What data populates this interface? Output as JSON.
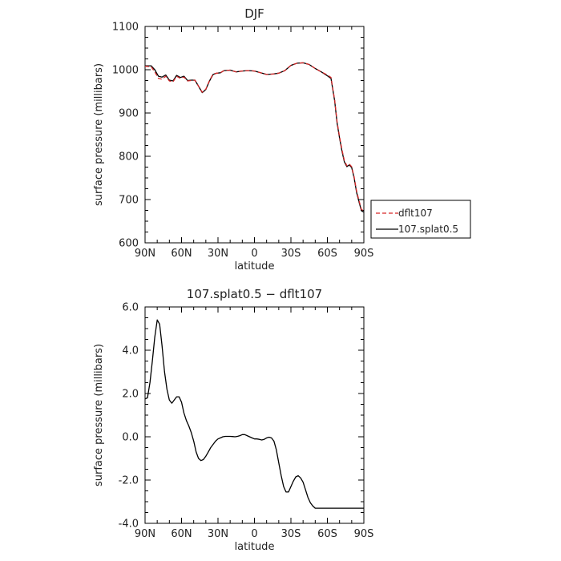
{
  "chart_data": [
    {
      "type": "line",
      "title": "DJF",
      "xlabel": "latitude",
      "ylabel": "surface pressure (millibars)",
      "xlim": [
        90,
        -90
      ],
      "ylim": [
        600,
        1100
      ],
      "x_ticks": [
        90,
        60,
        30,
        0,
        -30,
        -60,
        -90
      ],
      "x_tick_labels": [
        "90N",
        "60N",
        "30N",
        "0",
        "30S",
        "60S",
        "90S"
      ],
      "y_ticks": [
        600,
        700,
        800,
        900,
        1000,
        1100
      ],
      "y_tick_labels": [
        "600",
        "700",
        "800",
        "900",
        "1000",
        "1100"
      ],
      "legend_placement": "right",
      "series": [
        {
          "name": "dflt107",
          "color": "#d62728",
          "style": "dashed",
          "x": [
            90,
            85,
            82,
            79,
            76,
            73,
            70,
            67,
            64,
            61,
            58,
            55,
            52,
            49,
            46,
            43,
            40,
            37,
            34,
            31,
            28,
            25,
            20,
            15,
            10,
            5,
            0,
            -5,
            -10,
            -15,
            -20,
            -25,
            -30,
            -35,
            -40,
            -45,
            -50,
            -55,
            -60,
            -63,
            -66,
            -68,
            -70,
            -72,
            -74,
            -76,
            -78,
            -80,
            -82,
            -84,
            -86,
            -88,
            -90
          ],
          "y": [
            1008,
            1007,
            995,
            980,
            978,
            985,
            974,
            972,
            985,
            980,
            983,
            974,
            975,
            976,
            962,
            948,
            955,
            975,
            990,
            992,
            993,
            998,
            999,
            995,
            997,
            998,
            997,
            993,
            989,
            990,
            992,
            998,
            1010,
            1015,
            1016,
            1012,
            1003,
            995,
            988,
            982,
            930,
            880,
            845,
            815,
            790,
            778,
            782,
            776,
            752,
            720,
            698,
            677,
            674
          ]
        },
        {
          "name": "107.splat0.5",
          "color": "#000000",
          "style": "solid",
          "x": [
            90,
            85,
            82,
            79,
            76,
            73,
            70,
            67,
            64,
            61,
            58,
            55,
            52,
            49,
            46,
            43,
            40,
            37,
            34,
            31,
            28,
            25,
            20,
            15,
            10,
            5,
            0,
            -5,
            -10,
            -15,
            -20,
            -25,
            -30,
            -35,
            -40,
            -45,
            -50,
            -55,
            -60,
            -63,
            -66,
            -68,
            -70,
            -72,
            -74,
            -76,
            -78,
            -80,
            -82,
            -84,
            -86,
            -88,
            -90
          ],
          "y": [
            1009,
            1009,
            1000,
            985,
            983,
            988,
            976,
            974,
            987,
            982,
            985,
            975,
            976,
            976,
            962,
            947,
            954,
            974,
            989,
            992,
            993,
            998,
            999,
            995,
            997,
            998,
            997,
            993,
            989,
            990,
            992,
            998,
            1010,
            1015,
            1016,
            1012,
            1003,
            995,
            986,
            980,
            928,
            877,
            842,
            812,
            787,
            776,
            780,
            774,
            750,
            717,
            695,
            674,
            671
          ]
        }
      ]
    },
    {
      "type": "line",
      "title": "107.splat0.5 − dflt107",
      "xlabel": "latitude",
      "ylabel": "surface pressure (millibars)",
      "xlim": [
        90,
        -90
      ],
      "ylim": [
        -4,
        6
      ],
      "x_ticks": [
        90,
        60,
        30,
        0,
        -30,
        -60,
        -90
      ],
      "x_tick_labels": [
        "90N",
        "60N",
        "30N",
        "0",
        "30S",
        "60S",
        "90S"
      ],
      "y_ticks": [
        -4,
        -2,
        0,
        2,
        4,
        6
      ],
      "y_tick_labels": [
        "-4.0",
        "-2.0",
        "0.0",
        "2.0",
        "4.0",
        "6.0"
      ],
      "series": [
        {
          "color": "#000000",
          "style": "solid",
          "x": [
            90,
            88,
            86,
            84,
            82,
            80,
            78,
            76,
            74,
            72,
            70,
            68,
            66,
            64,
            62,
            60,
            58,
            56,
            54,
            52,
            50,
            48,
            46,
            44,
            42,
            40,
            38,
            36,
            34,
            32,
            30,
            28,
            26,
            24,
            22,
            20,
            18,
            16,
            14,
            12,
            10,
            8,
            6,
            4,
            2,
            0,
            -2,
            -4,
            -6,
            -8,
            -10,
            -12,
            -14,
            -16,
            -18,
            -20,
            -22,
            -24,
            -26,
            -28,
            -30,
            -32,
            -34,
            -36,
            -38,
            -40,
            -42,
            -44,
            -46,
            -48,
            -50,
            -52,
            -54,
            -56,
            -58,
            -60,
            -62,
            -64,
            -66,
            -68,
            -70,
            -72,
            -74,
            -76,
            -78,
            -80,
            -82,
            -84,
            -86,
            -88,
            -90
          ],
          "y": [
            1.75,
            1.8,
            2.5,
            3.5,
            4.6,
            5.4,
            5.2,
            4.2,
            3.0,
            2.2,
            1.7,
            1.55,
            1.7,
            1.85,
            1.85,
            1.6,
            1.1,
            0.75,
            0.5,
            0.2,
            -0.2,
            -0.7,
            -1.0,
            -1.1,
            -1.05,
            -0.9,
            -0.7,
            -0.5,
            -0.35,
            -0.2,
            -0.1,
            -0.05,
            0.0,
            0.02,
            0.02,
            0.02,
            0.01,
            0.0,
            0.02,
            0.05,
            0.1,
            0.1,
            0.05,
            0.0,
            -0.05,
            -0.1,
            -0.1,
            -0.12,
            -0.15,
            -0.12,
            -0.05,
            -0.02,
            -0.05,
            -0.2,
            -0.6,
            -1.2,
            -1.8,
            -2.3,
            -2.55,
            -2.55,
            -2.3,
            -2.05,
            -1.85,
            -1.8,
            -1.9,
            -2.1,
            -2.45,
            -2.8,
            -3.05,
            -3.2,
            -3.3,
            -3.3,
            -3.3,
            -3.3,
            -3.3,
            -3.3,
            -3.3,
            -3.3,
            -3.3,
            -3.3,
            -3.3,
            -3.3,
            -3.3,
            -3.3,
            -3.3,
            -3.3,
            -3.3,
            -3.3,
            -3.3,
            -3.3,
            -3.3
          ]
        }
      ]
    }
  ]
}
